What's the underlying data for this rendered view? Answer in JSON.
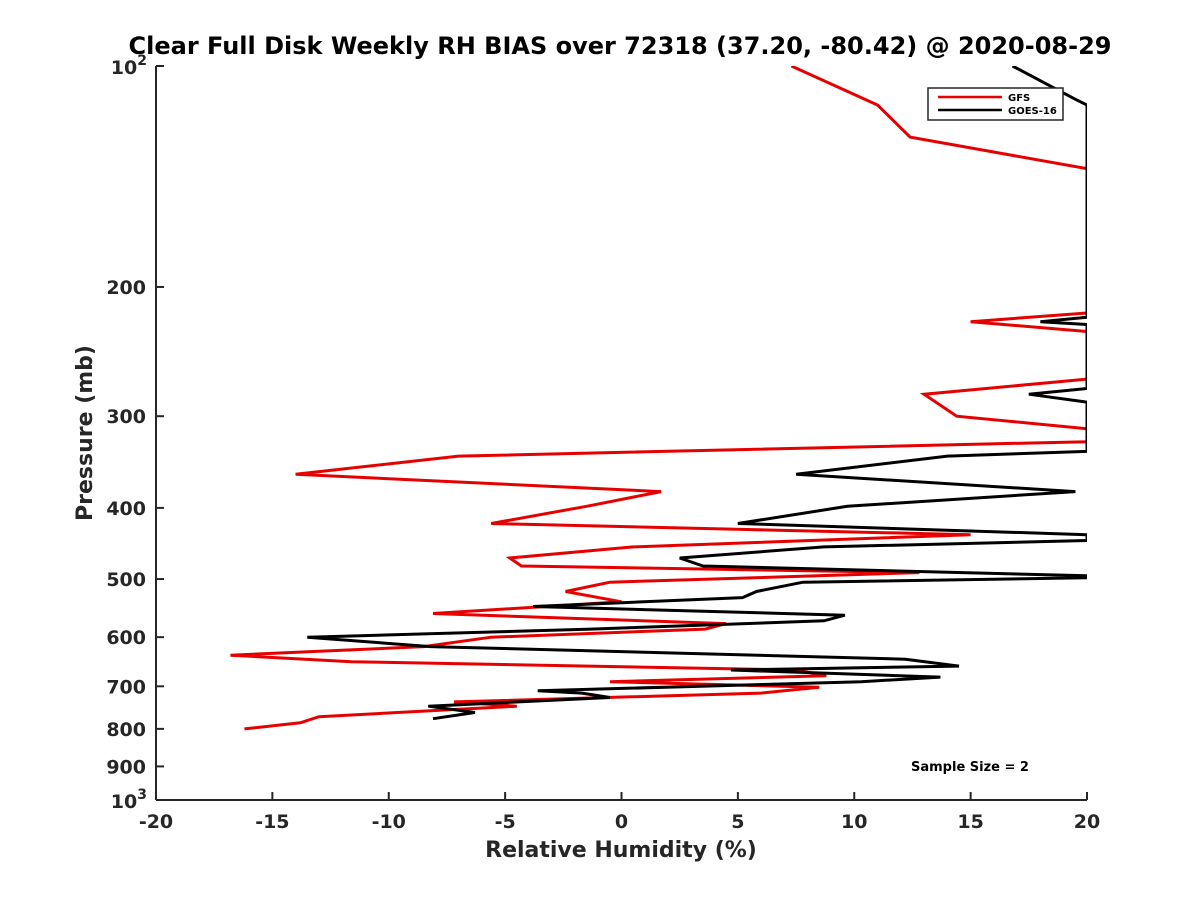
{
  "chart_data": {
    "type": "line",
    "title": "Clear Full Disk Weekly RH BIAS over 72318 (37.20, -80.42) @ 2020-08-29",
    "xlabel": "Relative Humidity (%)",
    "ylabel": "Pressure (mb)",
    "xlim": [
      -20,
      20
    ],
    "ylim": [
      100,
      1000
    ],
    "y_scale": "log",
    "y_direction": "reverse",
    "grid": false,
    "legend_position": "top-right",
    "x_ticks": [
      "-20",
      "-15",
      "-10",
      "-5",
      "0",
      "5",
      "10",
      "15",
      "20"
    ],
    "y_ticks": [
      {
        "value": 100,
        "base": "10",
        "exp": "2"
      },
      {
        "value": 200,
        "label": "200"
      },
      {
        "value": 300,
        "label": "300"
      },
      {
        "value": 400,
        "label": "400"
      },
      {
        "value": 500,
        "label": "500"
      },
      {
        "value": 600,
        "label": "600"
      },
      {
        "value": 700,
        "label": "700"
      },
      {
        "value": 800,
        "label": "800"
      },
      {
        "value": 900,
        "label": "900"
      },
      {
        "value": 1000,
        "base": "10",
        "exp": "3"
      }
    ],
    "annotation": "Sample Size = 2",
    "series": [
      {
        "name": "GFS",
        "color": "#e60000",
        "points": [
          [
            7.3,
            100
          ],
          [
            11.0,
            113
          ],
          [
            12.4,
            125
          ],
          [
            20.0,
            138
          ],
          [
            20.0,
            217
          ],
          [
            15.0,
            223
          ],
          [
            20.0,
            230
          ],
          [
            20.0,
            267
          ],
          [
            13.0,
            280
          ],
          [
            14.4,
            300
          ],
          [
            20.0,
            312
          ],
          [
            20.0,
            325
          ],
          [
            -7.0,
            340
          ],
          [
            -14.0,
            360
          ],
          [
            1.7,
            380
          ],
          [
            -1.5,
            398
          ],
          [
            -5.6,
            420
          ],
          [
            15.0,
            435
          ],
          [
            0.5,
            452
          ],
          [
            -4.8,
            468
          ],
          [
            -4.3,
            480
          ],
          [
            12.8,
            490
          ],
          [
            -0.5,
            505
          ],
          [
            -2.4,
            520
          ],
          [
            0.0,
            537
          ],
          [
            -8.1,
            557
          ],
          [
            4.5,
            575
          ],
          [
            3.6,
            585
          ],
          [
            -5.6,
            600
          ],
          [
            -8.5,
            618
          ],
          [
            -16.8,
            635
          ],
          [
            -11.6,
            648
          ],
          [
            7.5,
            665
          ],
          [
            8.8,
            677
          ],
          [
            -0.5,
            690
          ],
          [
            8.5,
            702
          ],
          [
            6.0,
            715
          ],
          [
            -7.2,
            735
          ],
          [
            -4.5,
            745
          ],
          [
            -7.9,
            755
          ],
          [
            -13.0,
            770
          ],
          [
            -13.8,
            785
          ],
          [
            -16.2,
            800
          ]
        ]
      },
      {
        "name": "GOES-16",
        "color": "#000000",
        "points": [
          [
            16.8,
            100
          ],
          [
            19.5,
            111
          ],
          [
            20.0,
            113
          ],
          [
            20.0,
            220
          ],
          [
            18.0,
            223
          ],
          [
            20.0,
            225
          ],
          [
            20.0,
            275
          ],
          [
            17.5,
            280
          ],
          [
            20.0,
            287
          ],
          [
            20.0,
            335
          ],
          [
            14.0,
            340
          ],
          [
            7.5,
            360
          ],
          [
            19.5,
            380
          ],
          [
            9.7,
            398
          ],
          [
            5.0,
            420
          ],
          [
            20.0,
            435
          ],
          [
            20.0,
            443
          ],
          [
            8.7,
            452
          ],
          [
            2.5,
            468
          ],
          [
            3.5,
            480
          ],
          [
            20.0,
            495
          ],
          [
            20.0,
            498
          ],
          [
            7.8,
            505
          ],
          [
            5.8,
            520
          ],
          [
            5.2,
            530
          ],
          [
            -3.8,
            545
          ],
          [
            9.6,
            560
          ],
          [
            8.7,
            570
          ],
          [
            -1.3,
            585
          ],
          [
            -13.5,
            600
          ],
          [
            -8.2,
            618
          ],
          [
            12.2,
            643
          ],
          [
            14.5,
            657
          ],
          [
            4.7,
            665
          ],
          [
            13.7,
            680
          ],
          [
            10.3,
            690
          ],
          [
            -3.6,
            710
          ],
          [
            -1.7,
            715
          ],
          [
            -0.5,
            725
          ],
          [
            -8.3,
            745
          ],
          [
            -6.3,
            760
          ],
          [
            -8.1,
            775
          ]
        ]
      }
    ]
  }
}
